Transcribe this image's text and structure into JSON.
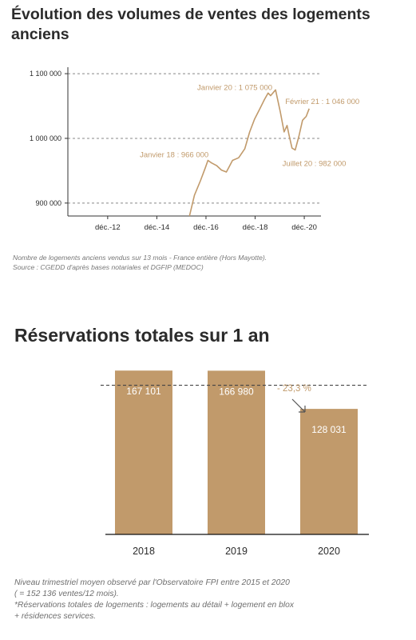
{
  "colors": {
    "accent": "#c19a6b",
    "text": "#2b2b2b",
    "note": "#777777",
    "axis": "#333333",
    "dash": "#888888"
  },
  "title1_lines": [
    "Évolution des volumes de ventes des logements",
    "anciens"
  ],
  "title2": "Réservations totales sur 1 an",
  "note1_lines": [
    "Nombre de logements anciens vendus sur 13 mois - France entière (Hors Mayotte).",
    "Source : CGEDD d'après bases notariales et DGFIP (MEDOC)"
  ],
  "note2_lines": [
    "Niveau trimestriel moyen observé par l'Observatoire FPI entre 2015 et 2020",
    "( = 152 136 ventes/12 mois).",
    "*Réservations totales de logements : logements au détail + logement en blox",
    "+ résidences services."
  ],
  "chart_data": [
    {
      "type": "line",
      "title": "Évolution des volumes de ventes des logements anciens",
      "ylim": [
        880000,
        1110000
      ],
      "xlim": [
        2011.3,
        2021.6
      ],
      "grid": "horizontal dashed",
      "y_ticks": [
        {
          "v": 1100000,
          "label": "1 100 000"
        },
        {
          "v": 1000000,
          "label": "1 000 000"
        },
        {
          "v": 900000,
          "label": "900 000"
        }
      ],
      "x_ticks": [
        {
          "v": 2012.92,
          "label": "déc.-12"
        },
        {
          "v": 2014.92,
          "label": "déc.-14"
        },
        {
          "v": 2016.92,
          "label": "déc.-16"
        },
        {
          "v": 2018.92,
          "label": "déc.-18"
        },
        {
          "v": 2020.92,
          "label": "déc.-20"
        }
      ],
      "series": [
        {
          "points": [
            [
              2016.25,
              880000
            ],
            [
              2016.45,
              912000
            ],
            [
              2016.7,
              935000
            ],
            [
              2016.9,
              955000
            ],
            [
              2017.0,
              966000
            ],
            [
              2017.15,
              962000
            ],
            [
              2017.35,
              958000
            ],
            [
              2017.55,
              951000
            ],
            [
              2017.75,
              948000
            ],
            [
              2017.85,
              955000
            ],
            [
              2018.0,
              966000
            ],
            [
              2018.25,
              970000
            ],
            [
              2018.5,
              984000
            ],
            [
              2018.7,
              1010000
            ],
            [
              2018.9,
              1030000
            ],
            [
              2019.1,
              1045000
            ],
            [
              2019.3,
              1060000
            ],
            [
              2019.45,
              1070000
            ],
            [
              2019.55,
              1066000
            ],
            [
              2019.75,
              1075000
            ],
            [
              2019.95,
              1040000
            ],
            [
              2020.1,
              1010000
            ],
            [
              2020.22,
              1020000
            ],
            [
              2020.3,
              1005000
            ],
            [
              2020.42,
              985000
            ],
            [
              2020.55,
              982000
            ],
            [
              2020.7,
              1003000
            ],
            [
              2020.85,
              1028000
            ],
            [
              2021.0,
              1034000
            ],
            [
              2021.12,
              1046000
            ]
          ]
        }
      ],
      "annotations": [
        {
          "text": "Janvier 20 : 1 075 000",
          "x": 2019.75,
          "y": 1075000,
          "anchor": "end"
        },
        {
          "text": "Février 21 : 1 046 000",
          "x": 2021.12,
          "y": 1046000,
          "anchor": "start"
        },
        {
          "text": "Janvier 18 : 966 000",
          "x": 2018.0,
          "y": 966000,
          "anchor": "end"
        },
        {
          "text": "Juillet 20 : 982 000",
          "x": 2020.55,
          "y": 982000,
          "anchor": "start"
        }
      ]
    },
    {
      "type": "bar",
      "title": "Réservations totales sur 1 an",
      "categories": [
        "2018",
        "2019",
        "2020"
      ],
      "values": [
        167101,
        166980,
        128031
      ],
      "value_labels": [
        "167 101",
        "166 980",
        "128 031"
      ],
      "ylim": [
        0,
        173000
      ],
      "reference_line": 152136,
      "change_label": "- 23,3 %"
    }
  ]
}
